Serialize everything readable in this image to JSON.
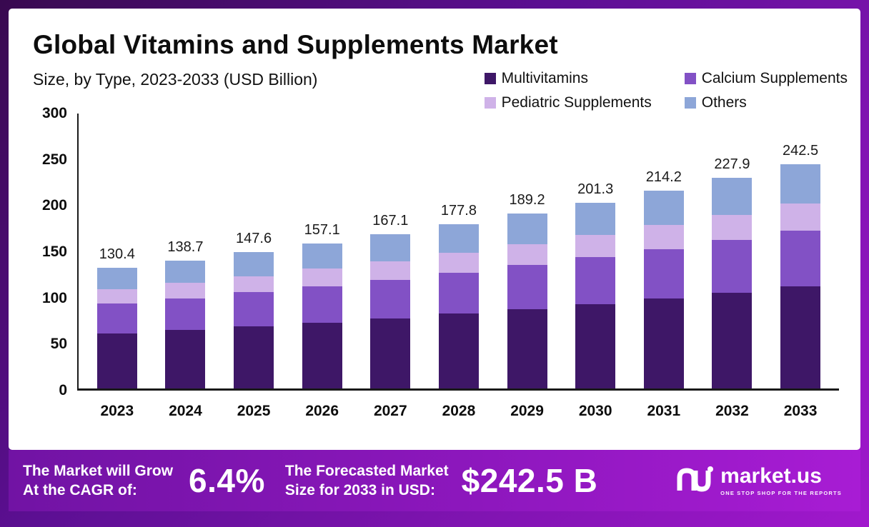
{
  "chart_data": {
    "type": "bar",
    "stacked": true,
    "title": "Global Vitamins and Supplements Market",
    "subtitle": "Size, by Type, 2023-2033 (USD Billion)",
    "categories": [
      "2023",
      "2024",
      "2025",
      "2026",
      "2027",
      "2028",
      "2029",
      "2030",
      "2031",
      "2032",
      "2033"
    ],
    "series": [
      {
        "name": "Multivitamins",
        "color": "#3e1767",
        "values": [
          59.3,
          63.1,
          67.2,
          71.5,
          76.0,
          80.9,
          86.1,
          91.6,
          97.5,
          103.7,
          110.3
        ]
      },
      {
        "name": "Calcium Supplements",
        "color": "#8251c5",
        "values": [
          32.6,
          34.7,
          36.9,
          39.3,
          41.8,
          44.5,
          47.3,
          50.3,
          53.6,
          57.0,
          60.6
        ]
      },
      {
        "name": "Pediatric Supplements",
        "color": "#cfb2e8",
        "values": [
          15.6,
          16.6,
          17.7,
          18.9,
          20.1,
          21.3,
          22.7,
          24.2,
          25.7,
          27.3,
          29.1
        ]
      },
      {
        "name": "Others",
        "color": "#8da6d8",
        "values": [
          22.9,
          24.3,
          25.8,
          27.4,
          29.2,
          31.1,
          33.1,
          35.2,
          37.4,
          39.9,
          42.5
        ]
      }
    ],
    "totals": [
      "130.4",
      "138.7",
      "147.6",
      "157.1",
      "167.1",
      "177.8",
      "189.2",
      "201.3",
      "214.2",
      "227.9",
      "242.5"
    ],
    "ylim": [
      0,
      300
    ],
    "yticks": [
      0,
      50,
      100,
      150,
      200,
      250,
      300
    ],
    "xlabel": "",
    "ylabel": "",
    "grid": false,
    "legend_position": "top-right"
  },
  "footer": {
    "cagr_line1": "The Market will Grow",
    "cagr_line2": "At the CAGR of:",
    "cagr_value": "6.4%",
    "forecast_line1": "The Forecasted Market",
    "forecast_line2": "Size for 2033 in USD:",
    "forecast_value": "$242.5 B",
    "brand_name": "market.us",
    "brand_tagline": "One Stop Shop For The Reports"
  },
  "colors": {
    "frame_gradient_start": "#38094f",
    "frame_gradient_end": "#a118cd",
    "banner_gradient_start": "#7113a4",
    "banner_gradient_end": "#a81cd4",
    "axis": "#1a1a1a",
    "text": "#0d0d0d"
  }
}
